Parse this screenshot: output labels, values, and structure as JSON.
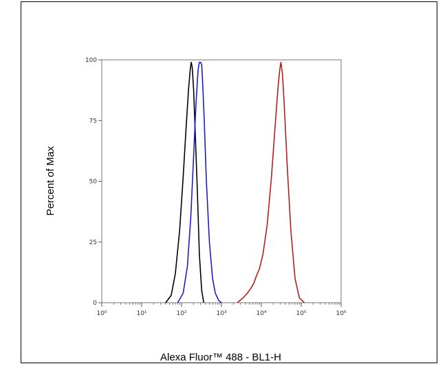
{
  "chart_data": {
    "type": "line",
    "xlabel": "Alexa Fluor™ 488 - BL1-H",
    "ylabel": "Percent of Max",
    "xscale": "log",
    "xlim": [
      1,
      1000000
    ],
    "ylim": [
      0,
      100
    ],
    "x_ticks": [
      {
        "value": 1,
        "label": "10⁰"
      },
      {
        "value": 10,
        "label": "10¹"
      },
      {
        "value": 100,
        "label": "10²"
      },
      {
        "value": 1000,
        "label": "10³"
      },
      {
        "value": 10000,
        "label": "10⁴"
      },
      {
        "value": 100000,
        "label": "10⁵"
      },
      {
        "value": 1000000,
        "label": "10⁶"
      }
    ],
    "y_ticks": [
      {
        "value": 0,
        "label": "0"
      },
      {
        "value": 25,
        "label": "25"
      },
      {
        "value": 50,
        "label": "50"
      },
      {
        "value": 75,
        "label": "75"
      },
      {
        "value": 100,
        "label": "100"
      }
    ],
    "grid": false,
    "series": [
      {
        "color": "#000000",
        "x": [
          40,
          55,
          70,
          90,
          110,
          130,
          150,
          165,
          175,
          185,
          200,
          220,
          250,
          280,
          320,
          360
        ],
        "y": [
          0,
          3,
          12,
          30,
          52,
          72,
          88,
          96,
          99,
          97,
          88,
          70,
          45,
          20,
          5,
          0
        ]
      },
      {
        "color": "#1c1cc8",
        "x": [
          80,
          110,
          140,
          170,
          200,
          230,
          260,
          280,
          300,
          320,
          340,
          370,
          420,
          500,
          600,
          700,
          850,
          1000
        ],
        "y": [
          0,
          4,
          15,
          35,
          60,
          82,
          96,
          99,
          99,
          98,
          90,
          75,
          50,
          25,
          10,
          4,
          1,
          0
        ]
      },
      {
        "color": "#b41e1e",
        "x": [
          2500,
          3500,
          4500,
          5500,
          6500,
          7500,
          9000,
          11000,
          14000,
          18000,
          22000,
          26000,
          29000,
          31000,
          34000,
          38000,
          45000,
          55000,
          70000,
          90000,
          120000
        ],
        "y": [
          0,
          2,
          4,
          6,
          8,
          11,
          14,
          20,
          32,
          52,
          72,
          88,
          96,
          99,
          94,
          80,
          55,
          30,
          10,
          2,
          0
        ]
      }
    ]
  }
}
